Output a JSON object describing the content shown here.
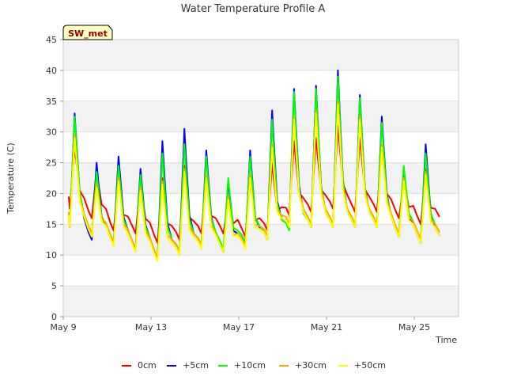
{
  "chart_data": {
    "type": "line",
    "title": "Water Temperature Profile A",
    "xlabel": "Time",
    "ylabel": "Temperature (C)",
    "ylim": [
      0,
      45
    ],
    "yticks": [
      0,
      5,
      10,
      15,
      20,
      25,
      30,
      35,
      40,
      45
    ],
    "xlim": [
      0,
      18.2
    ],
    "xticks": [
      {
        "label": "May 9",
        "day": 0
      },
      {
        "label": "May 13",
        "day": 4
      },
      {
        "label": "May 17",
        "day": 8
      },
      {
        "label": "May 21",
        "day": 12
      },
      {
        "label": "May 25",
        "day": 16
      }
    ],
    "grid": "horizontal bands",
    "legend_position": "bottom",
    "station_label": "SW_met",
    "daily_min_max_by_day": {
      "days": [
        "May 9",
        "May 10",
        "May 11",
        "May 12",
        "May 13",
        "May 14",
        "May 15",
        "May 16",
        "May 17",
        "May 18",
        "May 19",
        "May 20",
        "May 21",
        "May 22",
        "May 23",
        "May 24",
        "May 25",
        "May 26"
      ],
      "min": [
        15,
        13,
        12,
        11,
        9.5,
        10.5,
        11.5,
        11,
        11.5,
        12.5,
        14.5,
        15,
        15,
        15,
        14.5,
        14.5,
        13,
        12
      ],
      "max": [
        27,
        23,
        22,
        21,
        22,
        24,
        23,
        19,
        22,
        25,
        28,
        29,
        31,
        29,
        27,
        22,
        24,
        23
      ]
    },
    "series": [
      {
        "name": "0cm",
        "color": "#ff0000",
        "peaks": [
          27.5,
          23.5,
          22.5,
          21.5,
          22.5,
          24.5,
          23,
          19,
          22,
          25,
          28.5,
          29,
          31,
          29,
          27,
          22,
          24
        ],
        "troughs": [
          17.5,
          16,
          14,
          13.5,
          12,
          12.5,
          13.5,
          13.5,
          13,
          14,
          16.5,
          17,
          17.5,
          17,
          17,
          16,
          15
        ]
      },
      {
        "name": "+5cm",
        "color": "#0000ff",
        "peaks": [
          33,
          25,
          26,
          24,
          28.5,
          30.5,
          27,
          22,
          27,
          33.5,
          37,
          37.5,
          40,
          36,
          32.5,
          23,
          28
        ],
        "troughs": [
          14.5,
          12.5,
          12,
          11,
          9.5,
          10.5,
          11.5,
          10.5,
          11.5,
          12.5,
          14.5,
          14.5,
          14.5,
          14.5,
          14.5,
          13,
          12
        ]
      },
      {
        "name": "+10cm",
        "color": "#00ff00",
        "peaks": [
          32.5,
          23.5,
          24.5,
          23,
          26.5,
          28,
          26,
          22.5,
          26,
          32,
          36.5,
          37,
          39,
          35.5,
          31.5,
          24.5,
          26.5
        ],
        "troughs": [
          15,
          13,
          12,
          11,
          9.5,
          10.5,
          11.5,
          11,
          12,
          12.5,
          14,
          14.5,
          14.5,
          14.5,
          14.5,
          13.5,
          12.5
        ]
      },
      {
        "name": "+30cm",
        "color": "#ffa500",
        "peaks": [
          29.5,
          21.5,
          22.5,
          21,
          22,
          24,
          23,
          19.5,
          23,
          28,
          32.5,
          33.5,
          35,
          32.5,
          28,
          22.5,
          23.5
        ],
        "troughs": [
          15,
          13.5,
          12,
          11,
          9.5,
          10.5,
          11.5,
          10.5,
          11.5,
          13,
          15,
          15,
          15,
          15,
          15,
          13.5,
          12.5
        ]
      },
      {
        "name": "+50cm",
        "color": "#ffff00",
        "peaks": [
          29,
          21,
          22,
          20.5,
          21.5,
          23.5,
          22.5,
          19,
          22.5,
          27.5,
          32,
          33,
          34.5,
          32,
          27.5,
          22,
          23
        ],
        "troughs": [
          14.5,
          13,
          11.5,
          10.5,
          9,
          10,
          11,
          10.5,
          11,
          12.5,
          14.5,
          14.5,
          14.5,
          14.5,
          14.5,
          13,
          12
        ]
      }
    ]
  }
}
